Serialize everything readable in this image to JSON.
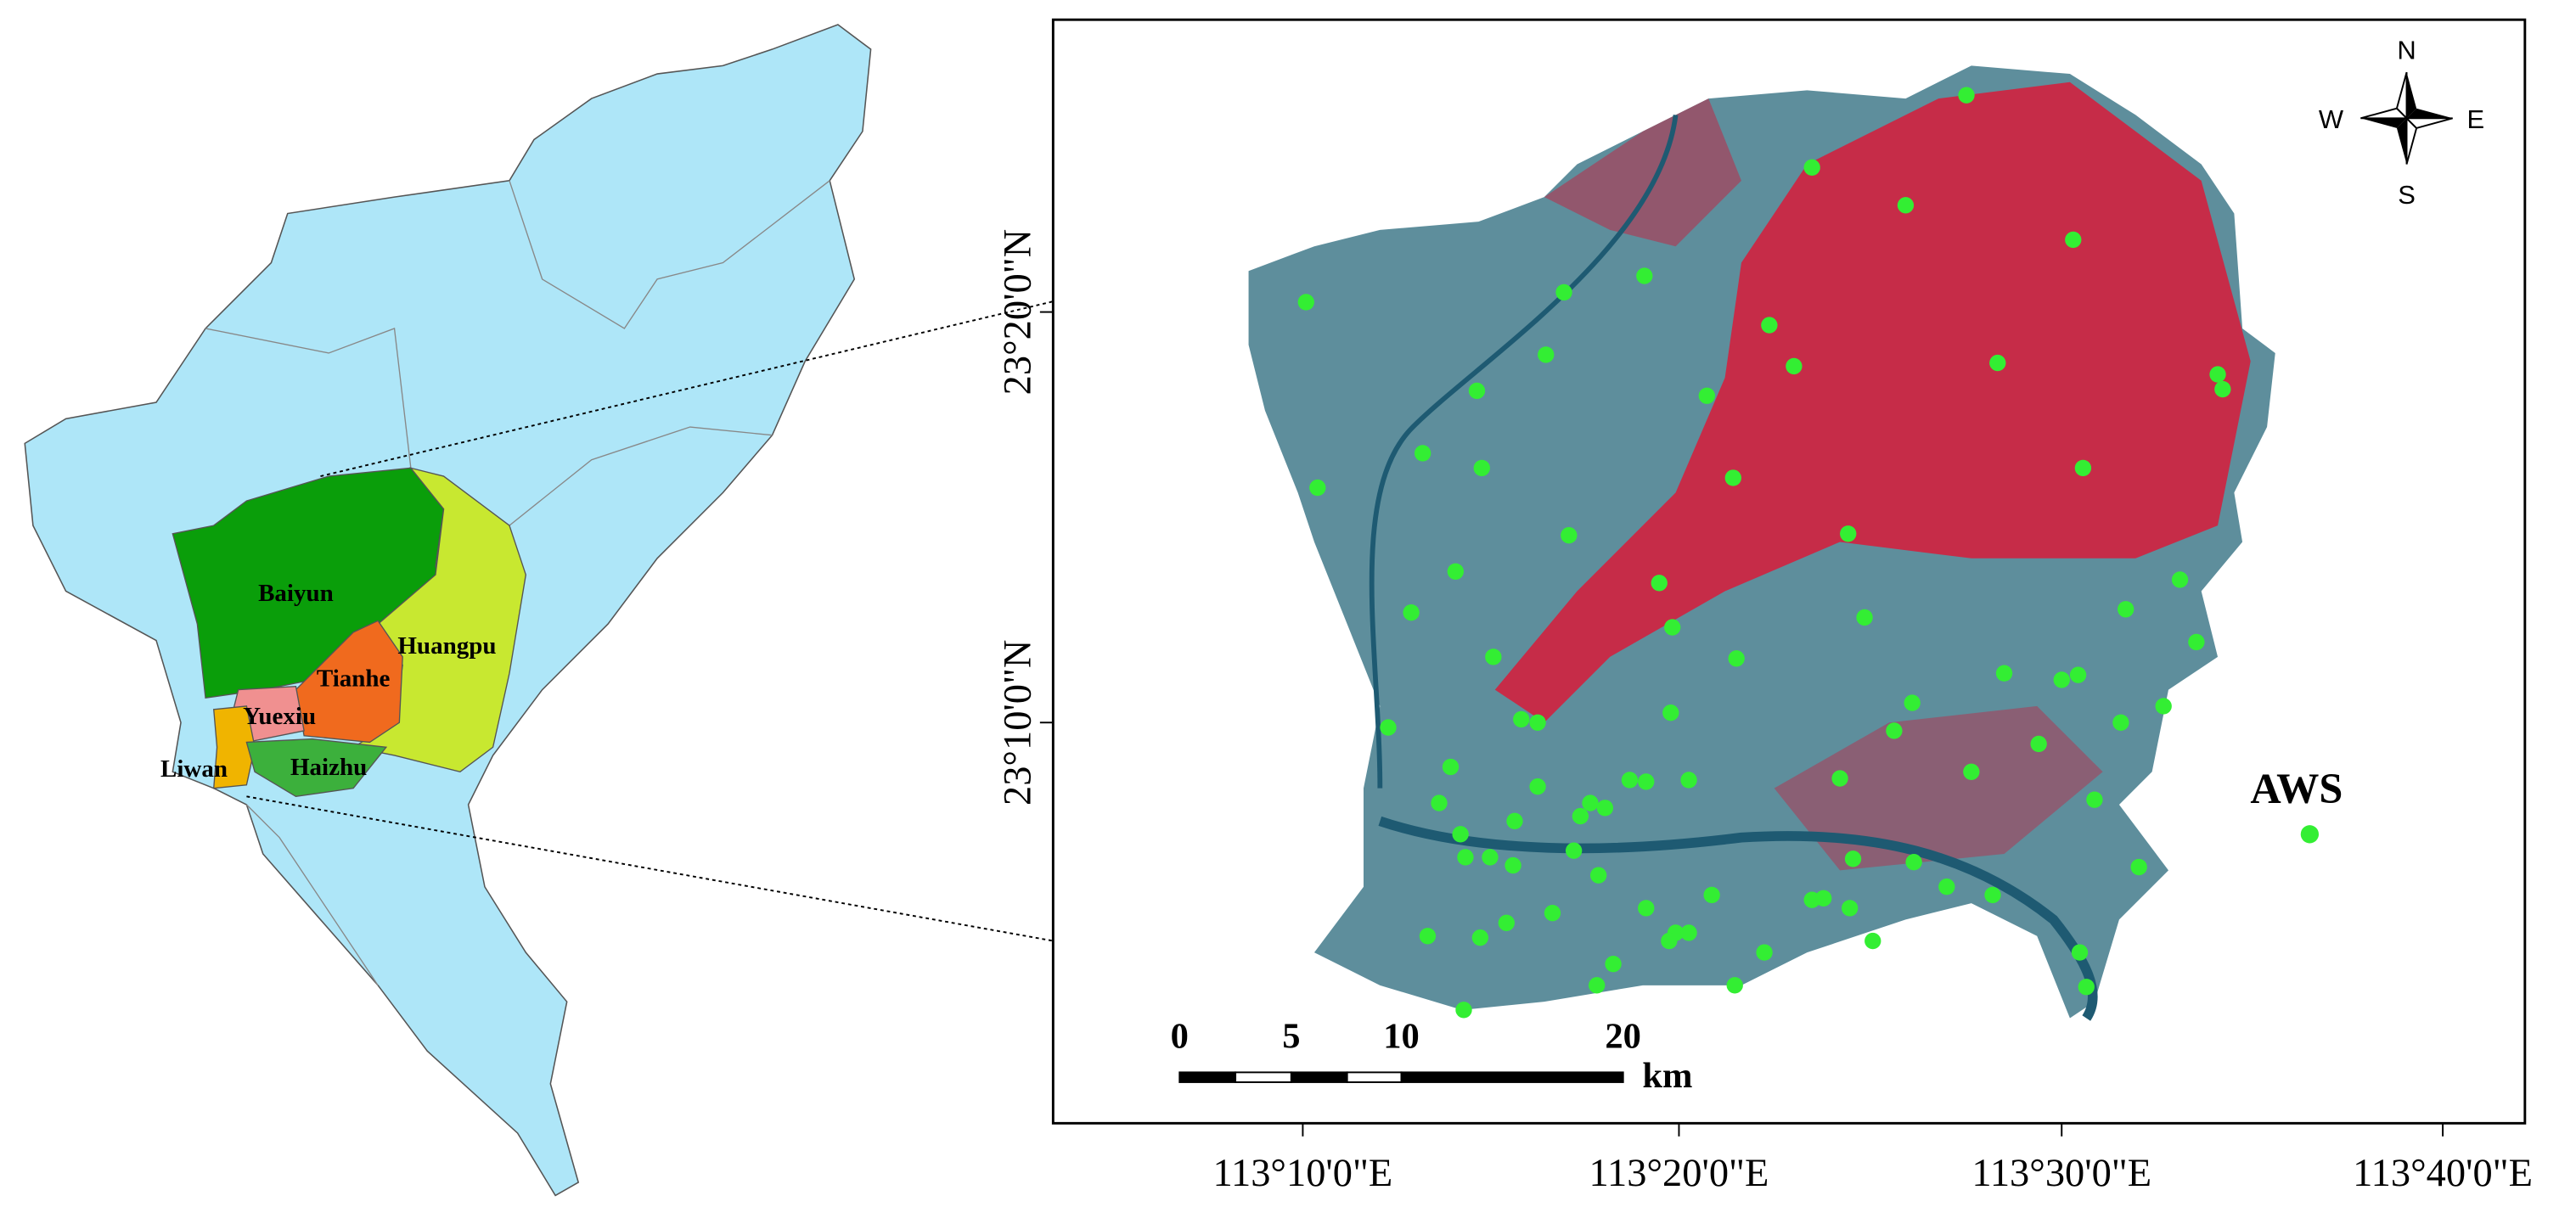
{
  "left_map": {
    "districts": [
      "Baiyun",
      "Huangpu",
      "Tianhe",
      "Yuexiu",
      "Liwan",
      "Haizhu"
    ]
  },
  "right_map": {
    "compass": {
      "n": "N",
      "e": "E",
      "s": "S",
      "w": "W"
    },
    "lat_labels": [
      "23°20'0\"N",
      "23°10'0\"N"
    ],
    "lon_labels": [
      "113°10'0\"E",
      "113°20'0\"E",
      "113°30'0\"E",
      "113°40'0\"E"
    ],
    "scale_bar": {
      "labels": [
        0,
        5,
        10,
        20
      ],
      "unit": "km"
    },
    "station_label": "AWS"
  }
}
